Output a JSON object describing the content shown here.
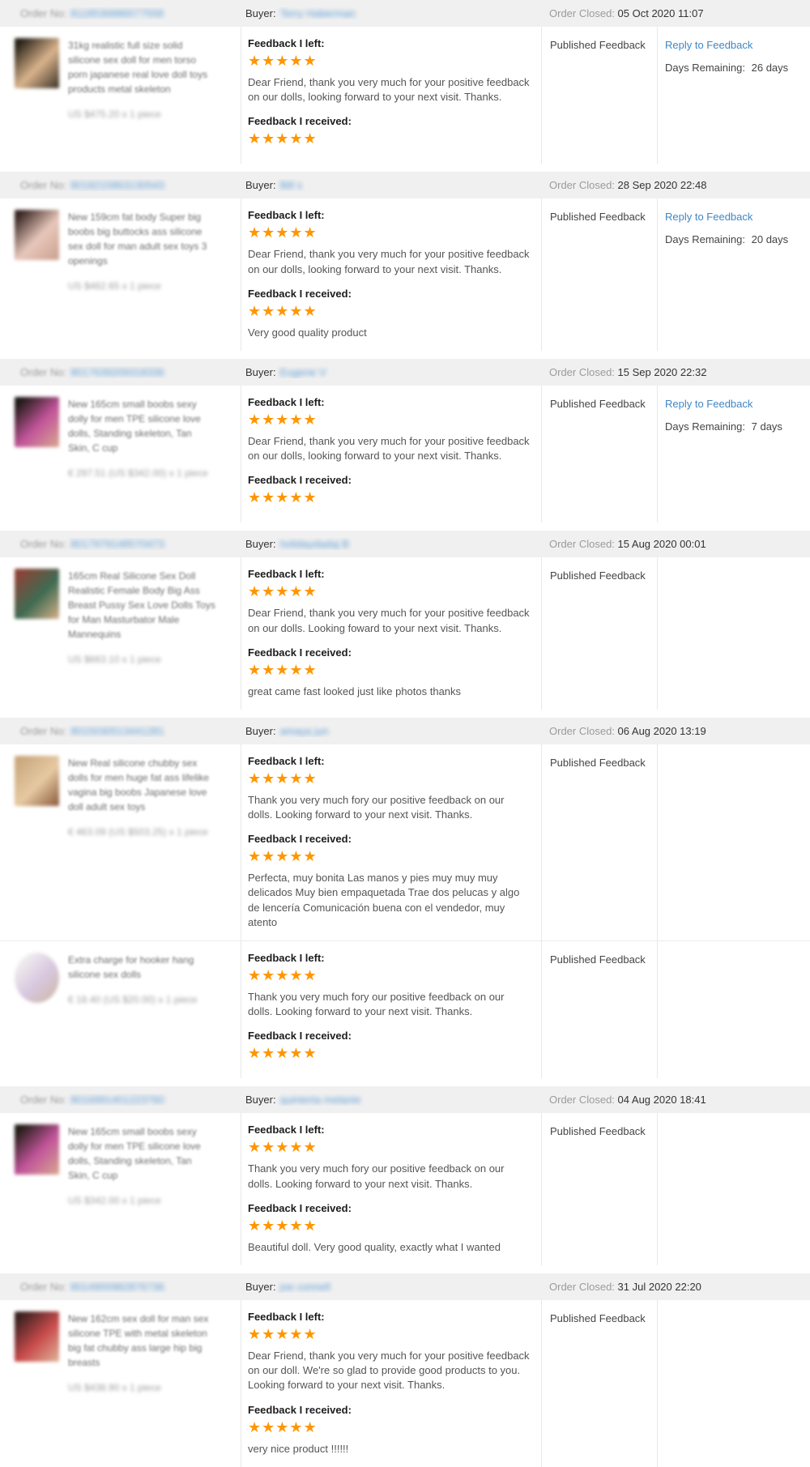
{
  "labels": {
    "order_no": "Order No:",
    "buyer": "Buyer:",
    "order_closed": "Order Closed:",
    "feedback_left": "Feedback I left:",
    "feedback_received": "Feedback I received:",
    "reply": "Reply to Feedback",
    "days_remaining": "Days Remaining:",
    "star": "★"
  },
  "colors": {
    "star": "#ff9600",
    "link_blue": "#3f87c5",
    "band_bg": "#f0f0f0",
    "divider": "#e8e8e8"
  },
  "orders": [
    {
      "order_no": "8118536886577558",
      "buyer": "Terry Haberman",
      "closed": "05 Oct 2020 11:07",
      "items": [
        {
          "title": "31kg realistic full size solid silicone sex doll for men torso porn japanese real love doll toys products metal skeleton",
          "price": "US $475.20 x 1 piece",
          "image_colors": [
            "#2a2318",
            "#d9b38c",
            "#3a3226"
          ],
          "image_round": false,
          "left_rating": 5,
          "left_text": "Dear Friend, thank you very much for your positive feedback on our dolls, looking forward to your next visit. Thanks.",
          "received_rating": 5,
          "received_text": "",
          "status": "Published Feedback",
          "reply": true,
          "days_remaining": "26 days"
        }
      ]
    },
    {
      "order_no": "8018215863130543",
      "buyer": "Bill s",
      "closed": "28 Sep 2020 22:48",
      "items": [
        {
          "title": "New 159cm fat body Super big boobs big buttocks ass silicone sex doll for man adult sex toys 3 openings",
          "price": "US $462.65 x 1 piece",
          "image_colors": [
            "#3a2723",
            "#e8c7bb",
            "#caa08e"
          ],
          "image_round": false,
          "left_rating": 5,
          "left_text": "Dear Friend, thank you very much for your positive feedback on our dolls, looking forward to your next visit. Thanks.",
          "received_rating": 5,
          "received_text": "Very good quality product",
          "status": "Published Feedback",
          "reply": true,
          "days_remaining": "20 days"
        }
      ]
    },
    {
      "order_no": "8017639209318336",
      "buyer": "Eugene V",
      "closed": "15 Sep 2020 22:32",
      "items": [
        {
          "title": "New 165cm small boobs sexy dolly for men TPE silicone love dolls, Standing skeleton, Tan Skin, C cup",
          "price": "€ 297.51 (US $342.00) x 1 piece",
          "image_colors": [
            "#1f1a16",
            "#c2559a",
            "#d8a88f"
          ],
          "image_round": false,
          "left_rating": 5,
          "left_text": "Dear Friend, thank you very much for your positive feedback on our dolls, looking forward to your next visit. Thanks.",
          "received_rating": 5,
          "received_text": "",
          "status": "Published Feedback",
          "reply": true,
          "days_remaining": "7 days"
        }
      ]
    },
    {
      "order_no": "8017979148570473",
      "buyer": "holidaydadaj B",
      "closed": "15 Aug 2020 00:01",
      "items": [
        {
          "title": "165cm Real Silicone Sex Doll Realistic Female Body Big Ass Breast Pussy Sex Love Dolls Toys for Man Masturbator Male Mannequins",
          "price": "US $663.10 x 1 piece",
          "image_colors": [
            "#8a4438",
            "#3f6b52",
            "#d8b089"
          ],
          "image_round": false,
          "left_rating": 5,
          "left_text": "Dear Friend, thank you very much for your positive feedback on our dolls. Looking foward to your next visit. Thanks.",
          "received_rating": 5,
          "received_text": "great came fast looked just like photos thanks",
          "status": "Published Feedback",
          "reply": false,
          "days_remaining": ""
        }
      ]
    },
    {
      "order_no": "8015030513441281",
      "buyer": "amaya jun",
      "closed": "06 Aug 2020 13:19",
      "items": [
        {
          "title": "New Real silicone chubby sex dolls for men huge fat ass lifelike vagina big boobs Japanese love doll adult sex toys",
          "price": "€ 463.09 (US $503.25) x 1 piece",
          "image_colors": [
            "#caa87e",
            "#e6c9a2",
            "#8b5a3c"
          ],
          "image_round": false,
          "left_rating": 5,
          "left_text": "Thank you very much fory our positive feedback on our dolls. Looking forward to your next visit. Thanks.",
          "received_rating": 5,
          "received_text": "Perfecta, muy bonita Las manos y pies muy muy muy delicados Muy bien empaquetada Trae dos pelucas y algo de lencería Comunicación buena con el vendedor, muy atento",
          "status": "Published Feedback",
          "reply": false,
          "days_remaining": ""
        },
        {
          "title": "Extra charge for hooker hang silicone sex dolls",
          "price": "€ 18.40 (US $20.00) x 1 piece",
          "image_colors": [
            "#f5f3f0",
            "#d8c8e0",
            "#cbb7a0"
          ],
          "image_round": true,
          "left_rating": 5,
          "left_text": "Thank you very much fory our positive feedback on our dolls. Looking forward to your next visit. Thanks.",
          "received_rating": 5,
          "received_text": "",
          "status": "Published Feedback",
          "reply": false,
          "days_remaining": ""
        }
      ]
    },
    {
      "order_no": "8016991401223760",
      "buyer": "quinterta melanie",
      "closed": "04 Aug 2020 18:41",
      "items": [
        {
          "title": "New 165cm small boobs sexy dolly for men TPE silicone love dolls, Standing skeleton, Tan Skin, C cup",
          "price": "US $342.00 x 1 piece",
          "image_colors": [
            "#241d18",
            "#c2559a",
            "#d8a88f"
          ],
          "image_round": false,
          "left_rating": 5,
          "left_text": "Thank you very much fory our positive feedback on our dolls. Looking forward to your next visit. Thanks.",
          "received_rating": 5,
          "received_text": "Beautiful doll. Very good quality, exactly what I wanted",
          "status": "Published Feedback",
          "reply": false,
          "days_remaining": ""
        }
      ]
    },
    {
      "order_no": "8014900982876736",
      "buyer": "joe connell",
      "closed": "31 Jul 2020 22:20",
      "items": [
        {
          "title": "New 162cm sex doll for man sex silicone TPE with metal skeleton big fat chubby ass large hip big breasts",
          "price": "US $438.90 x 1 piece",
          "image_colors": [
            "#3a2020",
            "#c84b4b",
            "#e0b49a"
          ],
          "image_round": false,
          "left_rating": 5,
          "left_text": "Dear Friend, thank you very much for your positive feedback on our doll. We're so glad to provide good products to you. Looking forward to your next visit. Thanks.",
          "received_rating": 5,
          "received_text": "very nice product !!!!!!",
          "status": "Published Feedback",
          "reply": false,
          "days_remaining": ""
        }
      ]
    }
  ]
}
